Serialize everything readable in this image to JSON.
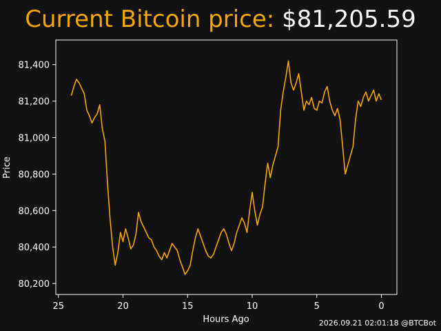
{
  "header": {
    "label": "Current Bitcoin price:",
    "price": "$81,205.59"
  },
  "footer": {
    "timestamp": "2026.09.21 02:01:18 @BTCBot"
  },
  "colors": {
    "background": "#121212",
    "accent": "#f5a700",
    "text": "#ffffff"
  },
  "chart_data": {
    "type": "line",
    "xlabel": "Hours Ago",
    "ylabel": "Price",
    "x_reversed": true,
    "xlim": [
      25.2,
      -1.2
    ],
    "ylim": [
      80140,
      81535
    ],
    "xticks": [
      25,
      20,
      15,
      10,
      5,
      0
    ],
    "yticks": [
      80200,
      80400,
      80600,
      80800,
      81000,
      81200,
      81400
    ],
    "yticklabels": [
      "80,200",
      "80,400",
      "80,600",
      "80,800",
      "81,000",
      "81,200",
      "81,400"
    ],
    "grid": false,
    "series": [
      {
        "color": "#f5a700",
        "points": [
          [
            24.0,
            81230
          ],
          [
            23.8,
            81280
          ],
          [
            23.6,
            81320
          ],
          [
            23.4,
            81300
          ],
          [
            23.2,
            81270
          ],
          [
            23.0,
            81240
          ],
          [
            22.8,
            81150
          ],
          [
            22.6,
            81120
          ],
          [
            22.4,
            81080
          ],
          [
            22.2,
            81110
          ],
          [
            22.0,
            81130
          ],
          [
            21.8,
            81180
          ],
          [
            21.6,
            81050
          ],
          [
            21.4,
            80980
          ],
          [
            21.2,
            80750
          ],
          [
            21.0,
            80550
          ],
          [
            20.8,
            80400
          ],
          [
            20.6,
            80300
          ],
          [
            20.4,
            80370
          ],
          [
            20.2,
            80480
          ],
          [
            20.0,
            80430
          ],
          [
            19.8,
            80500
          ],
          [
            19.6,
            80450
          ],
          [
            19.4,
            80390
          ],
          [
            19.2,
            80410
          ],
          [
            19.0,
            80470
          ],
          [
            18.8,
            80590
          ],
          [
            18.6,
            80540
          ],
          [
            18.4,
            80510
          ],
          [
            18.2,
            80480
          ],
          [
            18.0,
            80450
          ],
          [
            17.8,
            80440
          ],
          [
            17.6,
            80400
          ],
          [
            17.4,
            80380
          ],
          [
            17.2,
            80350
          ],
          [
            17.0,
            80330
          ],
          [
            16.8,
            80370
          ],
          [
            16.6,
            80340
          ],
          [
            16.4,
            80380
          ],
          [
            16.2,
            80420
          ],
          [
            16.0,
            80400
          ],
          [
            15.8,
            80380
          ],
          [
            15.6,
            80330
          ],
          [
            15.4,
            80290
          ],
          [
            15.2,
            80250
          ],
          [
            15.0,
            80270
          ],
          [
            14.8,
            80300
          ],
          [
            14.6,
            80380
          ],
          [
            14.4,
            80450
          ],
          [
            14.2,
            80500
          ],
          [
            14.0,
            80460
          ],
          [
            13.8,
            80420
          ],
          [
            13.6,
            80380
          ],
          [
            13.4,
            80350
          ],
          [
            13.2,
            80340
          ],
          [
            13.0,
            80360
          ],
          [
            12.8,
            80400
          ],
          [
            12.6,
            80440
          ],
          [
            12.4,
            80480
          ],
          [
            12.2,
            80500
          ],
          [
            12.0,
            80470
          ],
          [
            11.8,
            80420
          ],
          [
            11.6,
            80380
          ],
          [
            11.4,
            80420
          ],
          [
            11.2,
            80480
          ],
          [
            11.0,
            80520
          ],
          [
            10.8,
            80560
          ],
          [
            10.6,
            80530
          ],
          [
            10.4,
            80480
          ],
          [
            10.2,
            80600
          ],
          [
            10.0,
            80700
          ],
          [
            9.8,
            80600
          ],
          [
            9.6,
            80520
          ],
          [
            9.4,
            80580
          ],
          [
            9.2,
            80620
          ],
          [
            9.0,
            80750
          ],
          [
            8.8,
            80860
          ],
          [
            8.6,
            80780
          ],
          [
            8.4,
            80850
          ],
          [
            8.2,
            80900
          ],
          [
            8.0,
            80950
          ],
          [
            7.8,
            81150
          ],
          [
            7.6,
            81250
          ],
          [
            7.4,
            81330
          ],
          [
            7.2,
            81420
          ],
          [
            7.0,
            81300
          ],
          [
            6.8,
            81260
          ],
          [
            6.6,
            81300
          ],
          [
            6.4,
            81350
          ],
          [
            6.2,
            81250
          ],
          [
            6.0,
            81150
          ],
          [
            5.8,
            81200
          ],
          [
            5.6,
            81180
          ],
          [
            5.4,
            81220
          ],
          [
            5.2,
            81160
          ],
          [
            5.0,
            81150
          ],
          [
            4.8,
            81200
          ],
          [
            4.6,
            81190
          ],
          [
            4.4,
            81250
          ],
          [
            4.2,
            81280
          ],
          [
            4.0,
            81200
          ],
          [
            3.8,
            81150
          ],
          [
            3.6,
            81120
          ],
          [
            3.4,
            81160
          ],
          [
            3.2,
            81100
          ],
          [
            3.0,
            80950
          ],
          [
            2.8,
            80800
          ],
          [
            2.6,
            80850
          ],
          [
            2.4,
            80900
          ],
          [
            2.2,
            80950
          ],
          [
            2.0,
            81100
          ],
          [
            1.8,
            81200
          ],
          [
            1.6,
            81170
          ],
          [
            1.4,
            81220
          ],
          [
            1.2,
            81250
          ],
          [
            1.0,
            81200
          ],
          [
            0.8,
            81230
          ],
          [
            0.6,
            81260
          ],
          [
            0.4,
            81200
          ],
          [
            0.2,
            81240
          ],
          [
            0.0,
            81206
          ]
        ]
      }
    ]
  }
}
